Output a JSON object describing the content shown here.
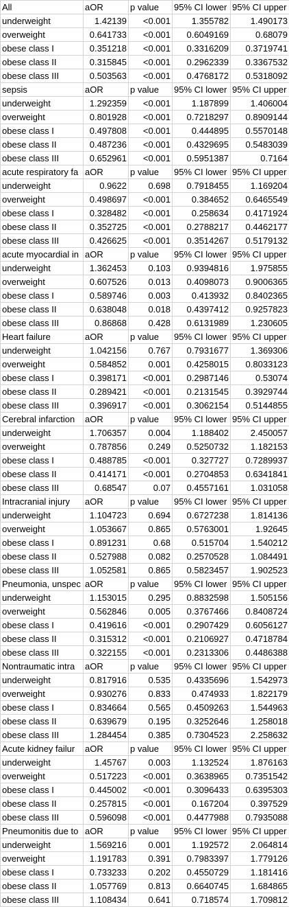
{
  "columns": [
    "aOR",
    "p value",
    "95% CI lower",
    "95% CI upper"
  ],
  "sections": [
    {
      "title": "All",
      "rows": [
        [
          "underweight",
          "1.42139",
          "<0.001",
          "1.355782",
          "1.490173"
        ],
        [
          "overweight",
          "0.641733",
          "<0.001",
          "0.6049169",
          "0.68079"
        ],
        [
          "obese class I",
          "0.351218",
          "<0.001",
          "0.3316209",
          "0.3719741"
        ],
        [
          "obese class II",
          "0.315845",
          "<0.001",
          "0.2962339",
          "0.3367532"
        ],
        [
          "obese class III",
          "0.503563",
          "<0.001",
          "0.4768172",
          "0.5318092"
        ]
      ]
    },
    {
      "title": "sepsis",
      "rows": [
        [
          "underweight",
          "1.292359",
          "<0.001",
          "1.187899",
          "1.406004"
        ],
        [
          "overweight",
          "0.801928",
          "<0.001",
          "0.7218297",
          "0.8909144"
        ],
        [
          "obese class I",
          "0.497808",
          "<0.001",
          "0.444895",
          "0.5570148"
        ],
        [
          "obese class II",
          "0.487236",
          "<0.001",
          "0.4329695",
          "0.5483039"
        ],
        [
          "obese class III",
          "0.652961",
          "<0.001",
          "0.5951387",
          "0.7164"
        ]
      ]
    },
    {
      "title": "acute respiratory fa",
      "rows": [
        [
          "underweight",
          "0.9622",
          "0.698",
          "0.7918455",
          "1.169204"
        ],
        [
          "overweight",
          "0.498697",
          "<0.001",
          "0.384652",
          "0.6465549"
        ],
        [
          "obese class I",
          "0.328482",
          "<0.001",
          "0.258634",
          "0.4171924"
        ],
        [
          "obese class II",
          "0.352725",
          "<0.001",
          "0.2788217",
          "0.4462177"
        ],
        [
          "obese class III",
          "0.426625",
          "<0.001",
          "0.3514267",
          "0.5179132"
        ]
      ]
    },
    {
      "title": "acute myocardial in",
      "rows": [
        [
          "underweight",
          "1.362453",
          "0.103",
          "0.9394816",
          "1.975855"
        ],
        [
          "overweight",
          "0.607526",
          "0.013",
          "0.4098073",
          "0.9006365"
        ],
        [
          "obese class I",
          "0.589746",
          "0.003",
          "0.413932",
          "0.8402365"
        ],
        [
          "obese class II",
          "0.638048",
          "0.018",
          "0.4397412",
          "0.9257823"
        ],
        [
          "obese class III",
          "0.86868",
          "0.428",
          "0.6131989",
          "1.230605"
        ]
      ]
    },
    {
      "title": "Heart failure",
      "rows": [
        [
          "underweight",
          "1.042156",
          "0.767",
          "0.7931677",
          "1.369306"
        ],
        [
          "overweight",
          "0.584852",
          "0.001",
          "0.4258015",
          "0.8033123"
        ],
        [
          "obese class I",
          "0.398171",
          "<0.001",
          "0.2987146",
          "0.53074"
        ],
        [
          "obese class II",
          "0.289421",
          "<0.001",
          "0.2131545",
          "0.3929744"
        ],
        [
          "obese class III",
          "0.396917",
          "<0.001",
          "0.3062154",
          "0.5144855"
        ]
      ]
    },
    {
      "title": "Cerebral infarction",
      "rows": [
        [
          "underweight",
          "1.706357",
          "0.004",
          "1.188402",
          "2.450057"
        ],
        [
          "overweight",
          "0.787856",
          "0.249",
          "0.5250732",
          "1.182153"
        ],
        [
          "obese class I",
          "0.488785",
          "<0.001",
          "0.327727",
          "0.7289937"
        ],
        [
          "obese class II",
          "0.414171",
          "<0.001",
          "0.2704853",
          "0.6341841"
        ],
        [
          "obese class III",
          "0.68547",
          "0.07",
          "0.4557161",
          "1.031058"
        ]
      ]
    },
    {
      "title": "Intracranial injury",
      "rows": [
        [
          "underweight",
          "1.104723",
          "0.694",
          "0.6727238",
          "1.814136"
        ],
        [
          "overweight",
          "1.053667",
          "0.865",
          "0.5763001",
          "1.92645"
        ],
        [
          "obese class I",
          "0.891231",
          "0.68",
          "0.515704",
          "1.540212"
        ],
        [
          "obese class II",
          "0.527988",
          "0.082",
          "0.2570528",
          "1.084491"
        ],
        [
          "obese class III",
          "1.052581",
          "0.865",
          "0.5823457",
          "1.902523"
        ]
      ]
    },
    {
      "title": "Pneumonia, unspec",
      "rows": [
        [
          "underweight",
          "1.153015",
          "0.295",
          "0.8832598",
          "1.505156"
        ],
        [
          "overweight",
          "0.562846",
          "0.005",
          "0.3767466",
          "0.8408724"
        ],
        [
          "obese class I",
          "0.419616",
          "<0.001",
          "0.2907429",
          "0.6056127"
        ],
        [
          "obese class II",
          "0.315312",
          "<0.001",
          "0.2106927",
          "0.4718784"
        ],
        [
          "obese class III",
          "0.322155",
          "<0.001",
          "0.2313306",
          "0.4486388"
        ]
      ]
    },
    {
      "title": "Nontraumatic intra",
      "rows": [
        [
          "underweight",
          "0.817916",
          "0.535",
          "0.4335696",
          "1.542973"
        ],
        [
          "overweight",
          "0.930276",
          "0.833",
          "0.474933",
          "1.822179"
        ],
        [
          "obese class I",
          "0.834664",
          "0.565",
          "0.4509263",
          "1.544963"
        ],
        [
          "obese class II",
          "0.639679",
          "0.195",
          "0.3252646",
          "1.258018"
        ],
        [
          "obese class III",
          "1.284454",
          "0.385",
          "0.7304523",
          "2.258632"
        ]
      ]
    },
    {
      "title": "Acute kidney failur",
      "rows": [
        [
          "underweight",
          "1.45767",
          "0.003",
          "1.132524",
          "1.876163"
        ],
        [
          "overweight",
          "0.517223",
          "<0.001",
          "0.3638965",
          "0.7351542"
        ],
        [
          "obese class I",
          "0.445002",
          "<0.001",
          "0.3096433",
          "0.6395303"
        ],
        [
          "obese class II",
          "0.257815",
          "<0.001",
          "0.167204",
          "0.397529"
        ],
        [
          "obese class III",
          "0.596098",
          "<0.001",
          "0.4477988",
          "0.7935088"
        ]
      ]
    },
    {
      "title": "Pneumonitis due to",
      "rows": [
        [
          "underweight",
          "1.569216",
          "0.001",
          "1.192572",
          "2.064814"
        ],
        [
          "overweight",
          "1.191783",
          "0.391",
          "0.7983397",
          "1.779126"
        ],
        [
          "obese class I",
          "0.733233",
          "0.202",
          "0.4550729",
          "1.181416"
        ],
        [
          "obese class II",
          "1.057769",
          "0.813",
          "0.6640745",
          "1.684865"
        ],
        [
          "obese class III",
          "1.108434",
          "0.641",
          "0.718574",
          "1.709812"
        ]
      ]
    }
  ]
}
